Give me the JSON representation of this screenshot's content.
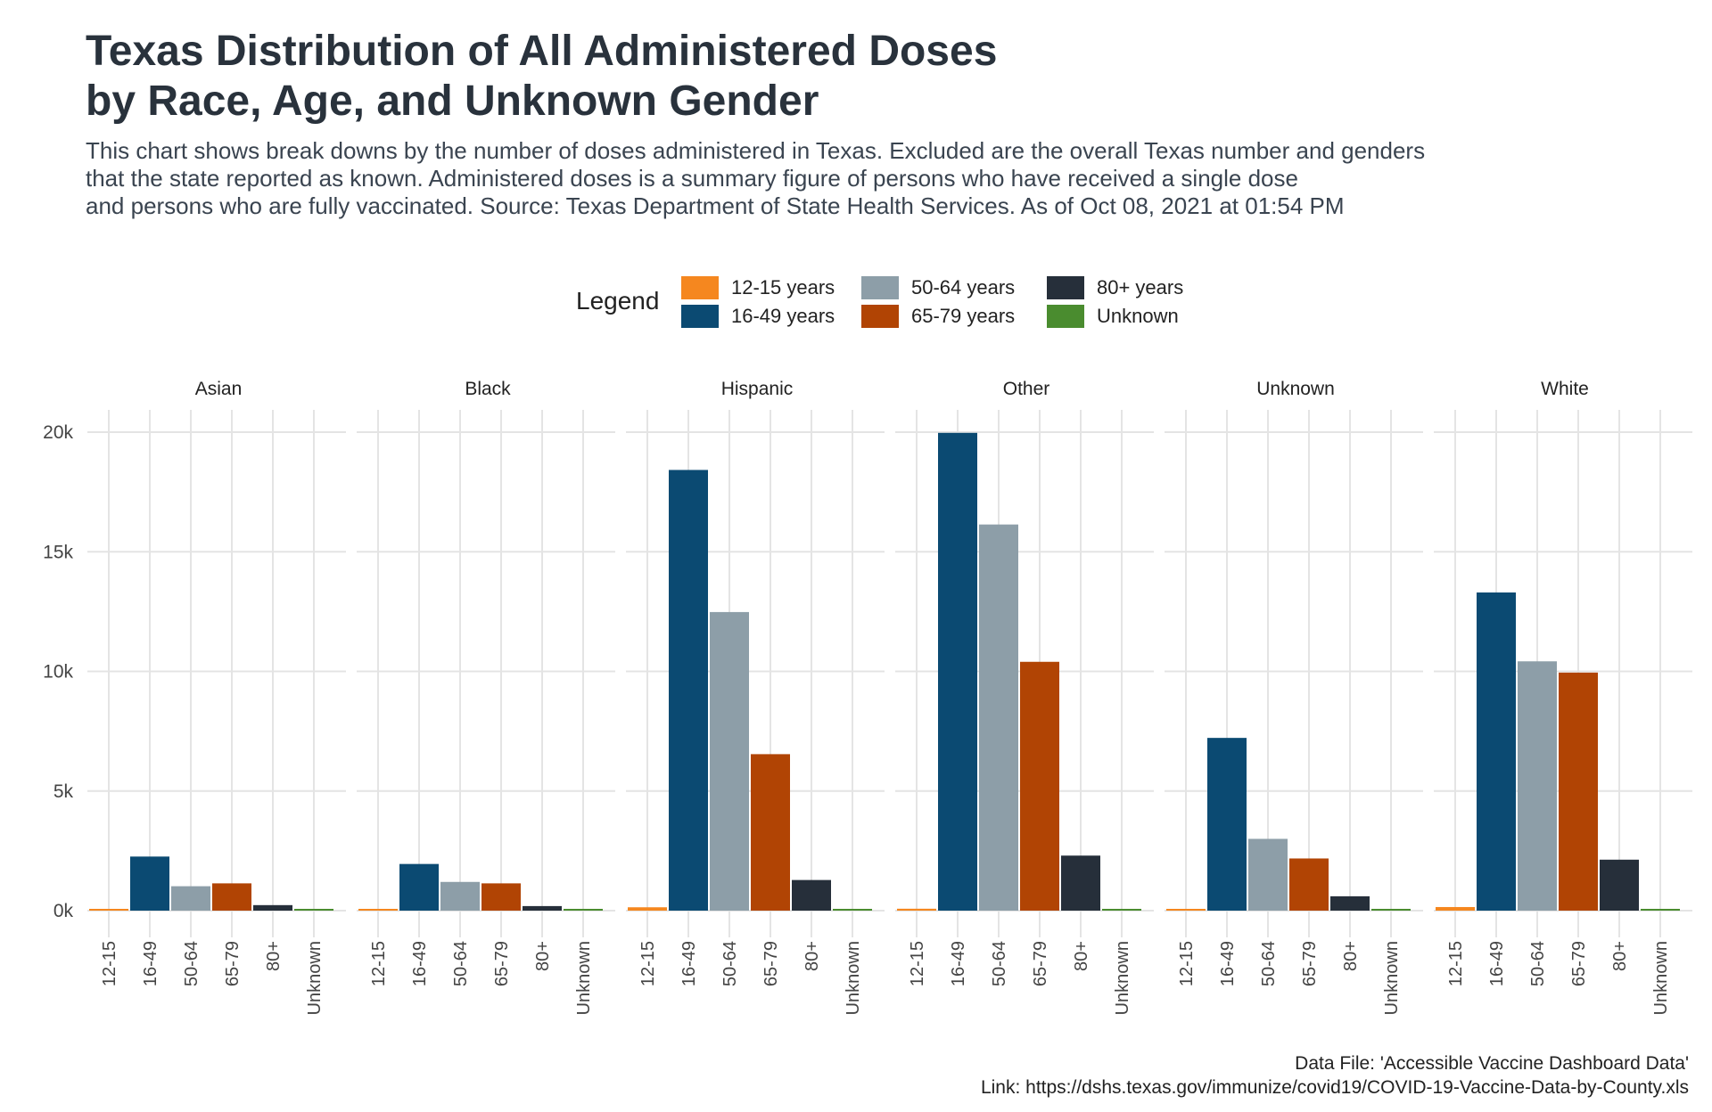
{
  "title_lines": [
    "Texas Distribution of All Administered Doses",
    "by Race, Age, and Unknown Gender"
  ],
  "subtitle_lines": [
    "This chart shows break downs by the number of doses administered in Texas. Excluded are the overall Texas number and genders",
    "that the state reported as known. Administered doses is a summary figure of persons who have received a single dose",
    "and persons who are fully vaccinated. Source: Texas Department of State Health Services. As of Oct 08, 2021 at 01:54 PM"
  ],
  "caption_lines": [
    "Data File: 'Accessible Vaccine Dashboard Data'",
    "Link: https://dshs.texas.gov/immunize/covid19/COVID-19-Vaccine-Data-by-County.xls"
  ],
  "legend": {
    "title": "Legend",
    "items": [
      {
        "label": "12-15 years",
        "color": "#f5871f"
      },
      {
        "label": "16-49 years",
        "color": "#0b4a72"
      },
      {
        "label": "50-64 years",
        "color": "#8d9ea8"
      },
      {
        "label": "65-79 years",
        "color": "#b14404"
      },
      {
        "label": "80+ years",
        "color": "#262f3a"
      },
      {
        "label": "Unknown",
        "color": "#4a8c2f"
      }
    ]
  },
  "chart_data": {
    "type": "bar",
    "facet_by": "race",
    "categories": [
      "12-15",
      "16-49",
      "50-64",
      "65-79",
      "80+",
      "Unknown"
    ],
    "colors": [
      "#f5871f",
      "#0b4a72",
      "#8d9ea8",
      "#b14404",
      "#262f3a",
      "#4a8c2f"
    ],
    "ylim": [
      0,
      20000
    ],
    "y_ticks": [
      0,
      5000,
      10000,
      15000,
      20000
    ],
    "y_tick_labels": [
      "0k",
      "5k",
      "10k",
      "15k",
      "20k"
    ],
    "grid": true,
    "legend_position": "top",
    "panels": [
      {
        "name": "Asian",
        "values": [
          70,
          2260,
          1020,
          1140,
          230,
          10
        ]
      },
      {
        "name": "Black",
        "values": [
          40,
          1950,
          1200,
          1140,
          190,
          10
        ]
      },
      {
        "name": "Hispanic",
        "values": [
          140,
          18420,
          12480,
          6540,
          1280,
          30
        ]
      },
      {
        "name": "Other",
        "values": [
          80,
          19970,
          16140,
          10400,
          2300,
          70
        ]
      },
      {
        "name": "Unknown",
        "values": [
          70,
          7220,
          3000,
          2180,
          600,
          30
        ]
      },
      {
        "name": "White",
        "values": [
          150,
          13300,
          10420,
          9950,
          2130,
          40
        ]
      }
    ]
  }
}
